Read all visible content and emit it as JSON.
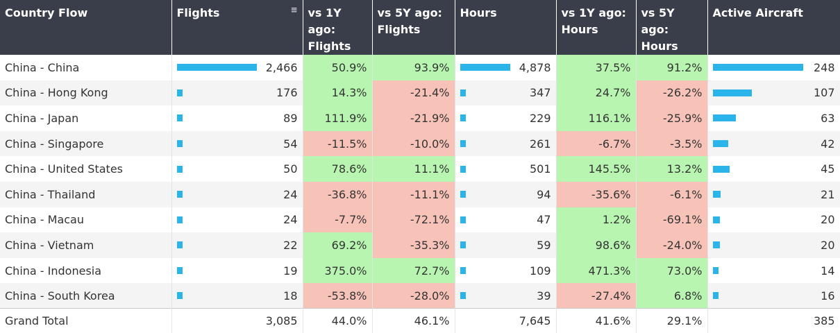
{
  "table": {
    "headers": {
      "country_flow": "Country Flow",
      "flights": "Flights",
      "vs1y_flights": "vs 1Y ago: Flights",
      "vs5y_flights": "vs 5Y ago: Flights",
      "hours": "Hours",
      "vs1y_hours": "vs 1Y ago: Hours",
      "vs5y_hours": "vs 5Y ago: Hours",
      "active_aircraft": "Active Aircraft"
    },
    "sort_icon": "sort-icon",
    "colors": {
      "header_bg": "#3a3d4a",
      "bar": "#2ab4ea",
      "positive": "#b8f5b0",
      "negative": "#f7c2b8"
    },
    "rows": [
      {
        "country_flow": "China - China",
        "flights": "2,466",
        "vs1y_flights": "50.9%",
        "vs5y_flights": "93.9%",
        "hours": "4,878",
        "vs1y_hours": "37.5%",
        "vs5y_hours": "91.2%",
        "active_aircraft": "248"
      },
      {
        "country_flow": "China - Hong Kong",
        "flights": "176",
        "vs1y_flights": "14.3%",
        "vs5y_flights": "-21.4%",
        "hours": "347",
        "vs1y_hours": "24.7%",
        "vs5y_hours": "-26.2%",
        "active_aircraft": "107"
      },
      {
        "country_flow": "China - Japan",
        "flights": "89",
        "vs1y_flights": "111.9%",
        "vs5y_flights": "-21.9%",
        "hours": "229",
        "vs1y_hours": "116.1%",
        "vs5y_hours": "-25.9%",
        "active_aircraft": "63"
      },
      {
        "country_flow": "China - Singapore",
        "flights": "54",
        "vs1y_flights": "-11.5%",
        "vs5y_flights": "-10.0%",
        "hours": "261",
        "vs1y_hours": "-6.7%",
        "vs5y_hours": "-3.5%",
        "active_aircraft": "42"
      },
      {
        "country_flow": "China - United States",
        "flights": "50",
        "vs1y_flights": "78.6%",
        "vs5y_flights": "11.1%",
        "hours": "501",
        "vs1y_hours": "145.5%",
        "vs5y_hours": "13.2%",
        "active_aircraft": "45"
      },
      {
        "country_flow": "China - Thailand",
        "flights": "24",
        "vs1y_flights": "-36.8%",
        "vs5y_flights": "-11.1%",
        "hours": "94",
        "vs1y_hours": "-35.6%",
        "vs5y_hours": "-6.1%",
        "active_aircraft": "21"
      },
      {
        "country_flow": "China - Macau",
        "flights": "24",
        "vs1y_flights": "-7.7%",
        "vs5y_flights": "-72.1%",
        "hours": "47",
        "vs1y_hours": "1.2%",
        "vs5y_hours": "-69.1%",
        "active_aircraft": "20"
      },
      {
        "country_flow": "China - Vietnam",
        "flights": "22",
        "vs1y_flights": "69.2%",
        "vs5y_flights": "-35.3%",
        "hours": "59",
        "vs1y_hours": "98.6%",
        "vs5y_hours": "-24.0%",
        "active_aircraft": "20"
      },
      {
        "country_flow": "China - Indonesia",
        "flights": "19",
        "vs1y_flights": "375.0%",
        "vs5y_flights": "72.7%",
        "hours": "109",
        "vs1y_hours": "471.3%",
        "vs5y_hours": "73.0%",
        "active_aircraft": "14"
      },
      {
        "country_flow": "China - South Korea",
        "flights": "18",
        "vs1y_flights": "-53.8%",
        "vs5y_flights": "-28.0%",
        "hours": "39",
        "vs1y_hours": "-27.4%",
        "vs5y_hours": "6.8%",
        "active_aircraft": "16"
      }
    ],
    "total": {
      "country_flow": "Grand Total",
      "flights": "3,085",
      "vs1y_flights": "44.0%",
      "vs5y_flights": "46.1%",
      "hours": "7,645",
      "vs1y_hours": "41.6%",
      "vs5y_hours": "29.1%",
      "active_aircraft": "385"
    }
  }
}
